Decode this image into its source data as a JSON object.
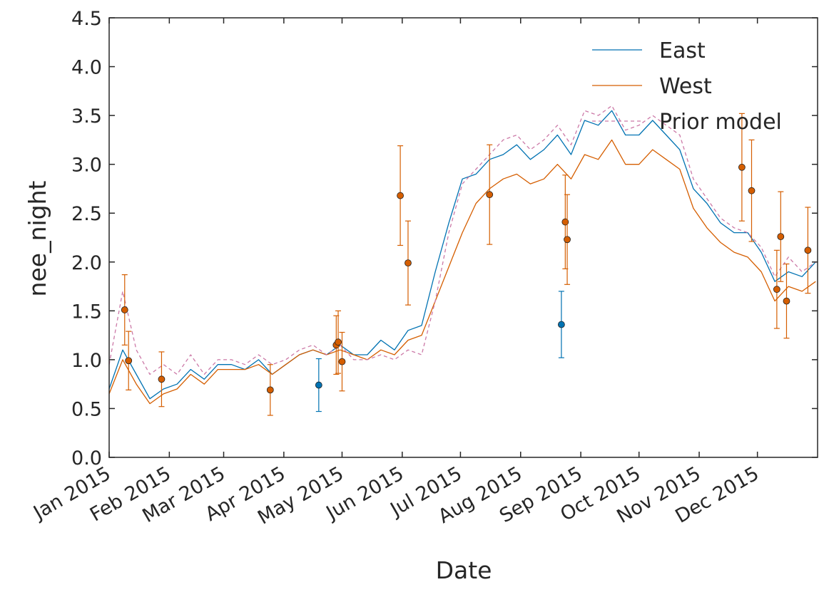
{
  "chart_data": {
    "type": "line",
    "title": "",
    "xlabel": "Date",
    "ylabel": "nee_night",
    "xlim": [
      "2015-01-01",
      "2015-12-31"
    ],
    "ylim": [
      0,
      4.5
    ],
    "grid": false,
    "legend_position": "top-right",
    "y_ticks": [
      "0.0",
      "0.5",
      "1.0",
      "1.5",
      "2.0",
      "2.5",
      "3.0",
      "3.5",
      "4.0",
      "4.5"
    ],
    "x_ticks": [
      {
        "date": "2015-01-01",
        "label": "Jan 2015"
      },
      {
        "date": "2015-02-01",
        "label": "Feb 2015"
      },
      {
        "date": "2015-03-01",
        "label": "Mar 2015"
      },
      {
        "date": "2015-04-01",
        "label": "Apr 2015"
      },
      {
        "date": "2015-05-01",
        "label": "May 2015"
      },
      {
        "date": "2015-06-01",
        "label": "Jun 2015"
      },
      {
        "date": "2015-07-01",
        "label": "Jul 2015"
      },
      {
        "date": "2015-08-01",
        "label": "Aug 2015"
      },
      {
        "date": "2015-09-01",
        "label": "Sep 2015"
      },
      {
        "date": "2015-10-01",
        "label": "Oct 2015"
      },
      {
        "date": "2015-11-01",
        "label": "Nov 2015"
      },
      {
        "date": "2015-12-01",
        "label": "Dec 2015"
      }
    ],
    "series": [
      {
        "name": "East",
        "color": "#0072b2",
        "style": "solid",
        "x": [
          "2015-01-01",
          "2015-01-08",
          "2015-01-15",
          "2015-01-22",
          "2015-01-29",
          "2015-02-05",
          "2015-02-12",
          "2015-02-19",
          "2015-02-26",
          "2015-03-05",
          "2015-03-12",
          "2015-03-19",
          "2015-03-26",
          "2015-04-02",
          "2015-04-09",
          "2015-04-16",
          "2015-04-23",
          "2015-04-30",
          "2015-05-07",
          "2015-05-14",
          "2015-05-21",
          "2015-05-28",
          "2015-06-04",
          "2015-06-11",
          "2015-06-18",
          "2015-06-25",
          "2015-07-02",
          "2015-07-09",
          "2015-07-16",
          "2015-07-23",
          "2015-07-30",
          "2015-08-06",
          "2015-08-13",
          "2015-08-20",
          "2015-08-27",
          "2015-09-03",
          "2015-09-10",
          "2015-09-17",
          "2015-09-24",
          "2015-10-01",
          "2015-10-08",
          "2015-10-15",
          "2015-10-22",
          "2015-10-29",
          "2015-11-05",
          "2015-11-12",
          "2015-11-19",
          "2015-11-26",
          "2015-12-03",
          "2015-12-10",
          "2015-12-17",
          "2015-12-24",
          "2015-12-31"
        ],
        "y": [
          0.7,
          1.1,
          0.85,
          0.6,
          0.7,
          0.75,
          0.9,
          0.8,
          0.95,
          0.95,
          0.9,
          1.0,
          0.85,
          0.95,
          1.05,
          1.1,
          1.05,
          1.15,
          1.05,
          1.05,
          1.2,
          1.1,
          1.3,
          1.35,
          1.9,
          2.4,
          2.85,
          2.9,
          3.05,
          3.1,
          3.2,
          3.05,
          3.15,
          3.3,
          3.1,
          3.45,
          3.4,
          3.55,
          3.3,
          3.3,
          3.45,
          3.3,
          3.15,
          2.75,
          2.6,
          2.4,
          2.3,
          2.3,
          2.1,
          1.8,
          1.9,
          1.85,
          2.0
        ]
      },
      {
        "name": "West",
        "color": "#d55e00",
        "style": "solid",
        "x": [
          "2015-01-01",
          "2015-01-08",
          "2015-01-15",
          "2015-01-22",
          "2015-01-29",
          "2015-02-05",
          "2015-02-12",
          "2015-02-19",
          "2015-02-26",
          "2015-03-05",
          "2015-03-12",
          "2015-03-19",
          "2015-03-26",
          "2015-04-02",
          "2015-04-09",
          "2015-04-16",
          "2015-04-23",
          "2015-04-30",
          "2015-05-07",
          "2015-05-14",
          "2015-05-21",
          "2015-05-28",
          "2015-06-04",
          "2015-06-11",
          "2015-06-18",
          "2015-06-25",
          "2015-07-02",
          "2015-07-09",
          "2015-07-16",
          "2015-07-23",
          "2015-07-30",
          "2015-08-06",
          "2015-08-13",
          "2015-08-20",
          "2015-08-27",
          "2015-09-03",
          "2015-09-10",
          "2015-09-17",
          "2015-09-24",
          "2015-10-01",
          "2015-10-08",
          "2015-10-15",
          "2015-10-22",
          "2015-10-29",
          "2015-11-05",
          "2015-11-12",
          "2015-11-19",
          "2015-11-26",
          "2015-12-03",
          "2015-12-10",
          "2015-12-17",
          "2015-12-24",
          "2015-12-31"
        ],
        "y": [
          0.65,
          1.0,
          0.75,
          0.55,
          0.65,
          0.7,
          0.85,
          0.75,
          0.9,
          0.9,
          0.9,
          0.95,
          0.85,
          0.95,
          1.05,
          1.1,
          1.05,
          1.1,
          1.05,
          1.0,
          1.1,
          1.05,
          1.2,
          1.25,
          1.6,
          1.95,
          2.3,
          2.6,
          2.75,
          2.85,
          2.9,
          2.8,
          2.85,
          3.0,
          2.85,
          3.1,
          3.05,
          3.25,
          3.0,
          3.0,
          3.15,
          3.05,
          2.95,
          2.55,
          2.35,
          2.2,
          2.1,
          2.05,
          1.9,
          1.6,
          1.75,
          1.7,
          1.8
        ]
      },
      {
        "name": "Prior model",
        "color": "#cc79a7",
        "style": "dashed",
        "x": [
          "2015-01-01",
          "2015-01-08",
          "2015-01-15",
          "2015-01-22",
          "2015-01-29",
          "2015-02-05",
          "2015-02-12",
          "2015-02-19",
          "2015-02-26",
          "2015-03-05",
          "2015-03-12",
          "2015-03-19",
          "2015-03-26",
          "2015-04-02",
          "2015-04-09",
          "2015-04-16",
          "2015-04-23",
          "2015-04-30",
          "2015-05-07",
          "2015-05-14",
          "2015-05-21",
          "2015-05-28",
          "2015-06-04",
          "2015-06-11",
          "2015-06-18",
          "2015-06-25",
          "2015-07-02",
          "2015-07-09",
          "2015-07-16",
          "2015-07-23",
          "2015-07-30",
          "2015-08-06",
          "2015-08-13",
          "2015-08-20",
          "2015-08-27",
          "2015-09-03",
          "2015-09-10",
          "2015-09-17",
          "2015-09-24",
          "2015-10-01",
          "2015-10-08",
          "2015-10-15",
          "2015-10-22",
          "2015-10-29",
          "2015-11-05",
          "2015-11-12",
          "2015-11-19",
          "2015-11-26",
          "2015-12-03",
          "2015-12-10",
          "2015-12-17",
          "2015-12-24",
          "2015-12-31"
        ],
        "y": [
          0.95,
          1.7,
          1.1,
          0.85,
          0.95,
          0.85,
          1.05,
          0.85,
          1.0,
          1.0,
          0.95,
          1.05,
          0.95,
          1.0,
          1.1,
          1.15,
          1.05,
          1.15,
          1.0,
          1.0,
          1.05,
          1.0,
          1.1,
          1.05,
          1.6,
          2.3,
          2.8,
          2.95,
          3.1,
          3.25,
          3.3,
          3.15,
          3.25,
          3.4,
          3.2,
          3.55,
          3.5,
          3.6,
          3.35,
          3.4,
          3.5,
          3.4,
          3.3,
          2.85,
          2.65,
          2.45,
          2.35,
          2.3,
          2.15,
          1.85,
          2.05,
          1.9,
          2.0
        ]
      }
    ],
    "observations": [
      {
        "site": "West",
        "date": "2015-01-09",
        "y": 1.51,
        "err": 0.36
      },
      {
        "site": "West",
        "date": "2015-01-11",
        "y": 0.99,
        "err": 0.3
      },
      {
        "site": "West",
        "date": "2015-01-28",
        "y": 0.8,
        "err": 0.28
      },
      {
        "site": "West",
        "date": "2015-03-25",
        "y": 0.69,
        "err": 0.26
      },
      {
        "site": "East",
        "date": "2015-04-19",
        "y": 0.74,
        "err": 0.27
      },
      {
        "site": "West",
        "date": "2015-04-28",
        "y": 1.15,
        "err": 0.3
      },
      {
        "site": "West",
        "date": "2015-04-29",
        "y": 1.18,
        "err": 0.32
      },
      {
        "site": "West",
        "date": "2015-05-01",
        "y": 0.98,
        "err": 0.3
      },
      {
        "site": "West",
        "date": "2015-05-31",
        "y": 2.68,
        "err": 0.51
      },
      {
        "site": "West",
        "date": "2015-06-04",
        "y": 1.99,
        "err": 0.43
      },
      {
        "site": "West",
        "date": "2015-07-16",
        "y": 2.69,
        "err": 0.51
      },
      {
        "site": "East",
        "date": "2015-08-22",
        "y": 1.36,
        "err": 0.34
      },
      {
        "site": "West",
        "date": "2015-08-24",
        "y": 2.41,
        "err": 0.48
      },
      {
        "site": "West",
        "date": "2015-08-25",
        "y": 2.23,
        "err": 0.46
      },
      {
        "site": "West",
        "date": "2015-11-23",
        "y": 2.97,
        "err": 0.55
      },
      {
        "site": "West",
        "date": "2015-11-28",
        "y": 2.73,
        "err": 0.52
      },
      {
        "site": "West",
        "date": "2015-12-11",
        "y": 1.72,
        "err": 0.4
      },
      {
        "site": "West",
        "date": "2015-12-13",
        "y": 2.26,
        "err": 0.46
      },
      {
        "site": "West",
        "date": "2015-12-16",
        "y": 1.6,
        "err": 0.38
      },
      {
        "site": "West",
        "date": "2015-12-27",
        "y": 2.12,
        "err": 0.44
      }
    ]
  }
}
